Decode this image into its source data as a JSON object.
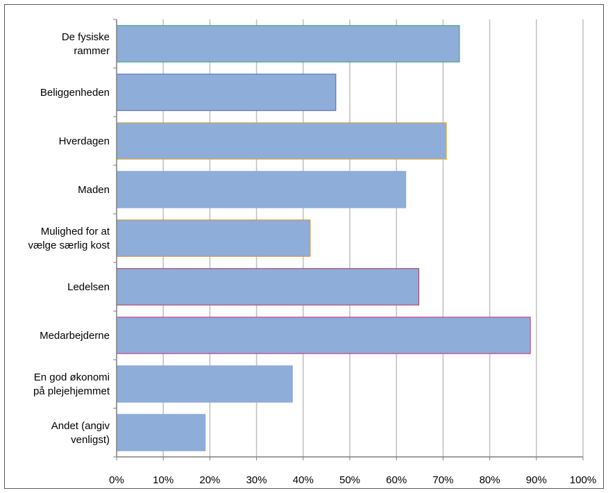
{
  "chart_data": {
    "type": "bar",
    "orientation": "horizontal",
    "categories": [
      [
        "De fysiske",
        "rammer"
      ],
      [
        "Beliggenheden"
      ],
      [
        "Hverdagen"
      ],
      [
        "Maden"
      ],
      [
        "Mulighed for at",
        "vælge særlig kost"
      ],
      [
        "Ledelsen"
      ],
      [
        "Medarbejderne"
      ],
      [
        "En god økonomi",
        "på plejehjemmet"
      ],
      [
        "Andet (angiv",
        "venligst)"
      ]
    ],
    "values": [
      73.5,
      47,
      70.7,
      62,
      41.5,
      64.8,
      88.7,
      37.7,
      19
    ],
    "bar_outline_colors": [
      "#2e9e7a",
      "#4a62b8",
      "#e8a51a",
      "#8da9db",
      "#e08a2a",
      "#a8334e",
      "#c0307a",
      "#8da9db",
      "#8da9db"
    ],
    "xlim": [
      0,
      100
    ],
    "xticks": [
      0,
      10,
      20,
      30,
      40,
      50,
      60,
      70,
      80,
      90,
      100
    ],
    "tick_suffix": "%",
    "grid": true,
    "bar_color": "#8eadd9",
    "grid_color": "#bfbfbf",
    "axis_color": "#7f7f7f"
  }
}
